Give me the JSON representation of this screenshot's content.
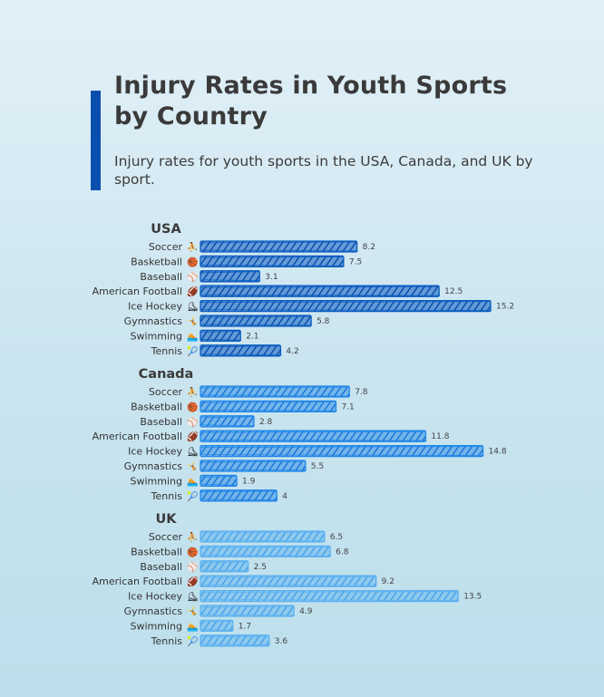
{
  "header": {
    "title": "Injury Rates in Youth Sports by Country",
    "subtitle": "Injury rates for youth sports in the USA, Canada, and UK by sport."
  },
  "colors": {
    "accent": "#0a4fae",
    "USA": "#0a5bc0",
    "Canada": "#1f86e8",
    "UK": "#5cb1f0"
  },
  "icons": {
    "Soccer": "⛹",
    "Basketball": "🏀",
    "Baseball": "⚾",
    "American Football": "🏈",
    "Ice Hockey": "⛸",
    "Gymnastics": "🤸",
    "Swimming": "🏊",
    "Tennis": "🎾"
  },
  "chart_data": {
    "type": "bar",
    "orientation": "horizontal",
    "categories": [
      "Soccer",
      "Basketball",
      "Baseball",
      "American Football",
      "Ice Hockey",
      "Gymnastics",
      "Swimming",
      "Tennis"
    ],
    "series": [
      {
        "name": "USA",
        "values": [
          8.2,
          7.5,
          3.1,
          12.5,
          15.2,
          5.8,
          2.1,
          4.2
        ]
      },
      {
        "name": "Canada",
        "values": [
          7.8,
          7.1,
          2.8,
          11.8,
          14.8,
          5.5,
          1.9,
          4
        ]
      },
      {
        "name": "UK",
        "values": [
          6.5,
          6.8,
          2.5,
          9.2,
          13.5,
          4.9,
          1.7,
          3.6
        ]
      }
    ],
    "xlim": [
      0,
      15.2
    ],
    "grid": false,
    "legend": "none"
  }
}
